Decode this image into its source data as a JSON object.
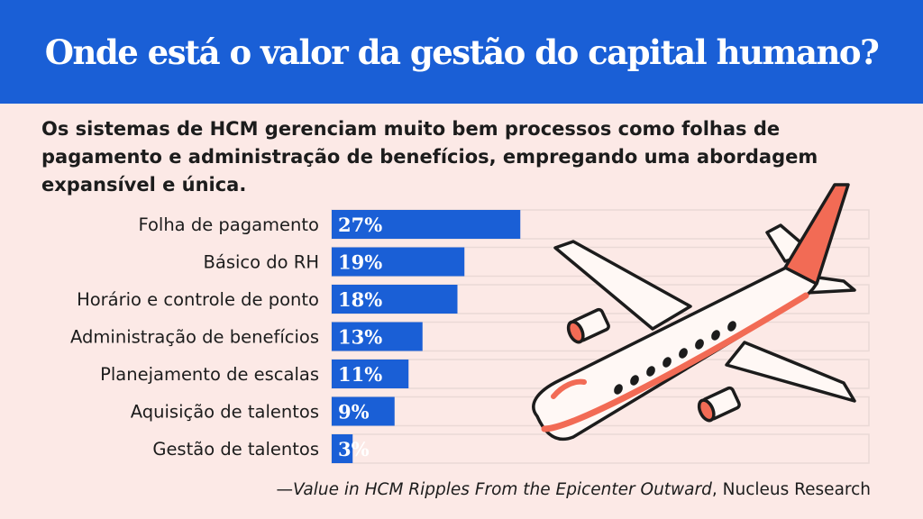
{
  "header": {
    "title": "Onde está o valor da gestão do capital humano?"
  },
  "subtitle": "Os sistemas de HCM gerenciam muito bem processos como folhas de pagamento e administração de benefícios, empregando uma abordagem expansível e única.",
  "source": {
    "dash": "—",
    "work": "Value in HCM Ripples From the Epicenter Outward",
    "org": ", Nucleus Research"
  },
  "chart_data": {
    "type": "bar",
    "orientation": "horizontal",
    "categories": [
      "Folha de pagamento",
      "Básico do RH",
      "Horário e controle de ponto",
      "Administração de benefícios",
      "Planejamento de escalas",
      "Aquisição de talentos",
      "Gestão de talentos"
    ],
    "values": [
      27,
      19,
      18,
      13,
      11,
      9,
      3
    ],
    "value_labels": [
      "27%",
      "19%",
      "18%",
      "13%",
      "11%",
      "9%",
      "3%"
    ],
    "xlim": [
      0,
      100
    ],
    "grid": false,
    "bar_color": "#1a5fd6"
  },
  "colors": {
    "header_bg": "#1a5fd6",
    "page_bg": "#fce9e6",
    "accent": "#f26b55"
  },
  "illustration": {
    "icon": "airplane-icon"
  }
}
